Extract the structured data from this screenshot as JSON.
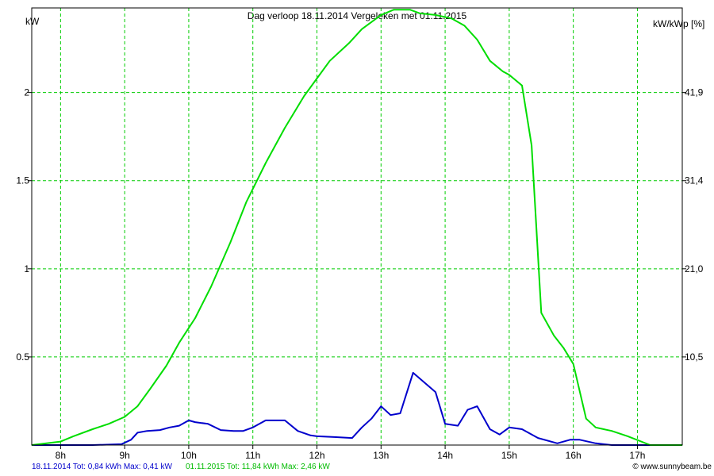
{
  "chart_data": {
    "type": "line",
    "title": "Dag  verloop 18.11.2014   Vergeleken met 01.11.2015",
    "ylabel_left": "kW",
    "ylabel_right": "kW/kWp [%]",
    "x_ticks": [
      "8h",
      "9h",
      "10h",
      "11h",
      "12h",
      "13h",
      "14h",
      "15h",
      "16h",
      "17h"
    ],
    "xlim": [
      7.55,
      17.7
    ],
    "ylim": [
      0,
      2.48
    ],
    "y_ticks_left": [
      "0.5",
      "1",
      "1.5",
      "2"
    ],
    "y_ticks_right": [
      "10,5",
      "21,0",
      "31,4",
      "41,9"
    ],
    "y_tick_values": [
      0.5,
      1,
      1.5,
      2
    ],
    "grid": true,
    "series": [
      {
        "name": "18.11.2014",
        "color": "#0000cc",
        "x": [
          7.55,
          8.5,
          8.95,
          9.1,
          9.2,
          9.35,
          9.55,
          9.7,
          9.85,
          10.0,
          10.1,
          10.3,
          10.5,
          10.7,
          10.85,
          11.0,
          11.2,
          11.5,
          11.7,
          11.9,
          12.0,
          12.3,
          12.55,
          12.7,
          12.85,
          13.0,
          13.15,
          13.3,
          13.5,
          13.85,
          14.0,
          14.2,
          14.35,
          14.5,
          14.7,
          14.85,
          15.0,
          15.2,
          15.45,
          15.75,
          15.95,
          16.1,
          16.35,
          16.6,
          17.7
        ],
        "values": [
          0,
          0,
          0.005,
          0.03,
          0.07,
          0.08,
          0.085,
          0.1,
          0.11,
          0.14,
          0.13,
          0.12,
          0.085,
          0.08,
          0.08,
          0.1,
          0.14,
          0.14,
          0.08,
          0.055,
          0.05,
          0.045,
          0.04,
          0.1,
          0.15,
          0.22,
          0.17,
          0.18,
          0.41,
          0.3,
          0.12,
          0.11,
          0.2,
          0.22,
          0.09,
          0.06,
          0.1,
          0.09,
          0.04,
          0.01,
          0.03,
          0.03,
          0.01,
          0,
          0
        ]
      },
      {
        "name": "01.11.2015",
        "color": "#00dd00",
        "x": [
          7.55,
          8.0,
          8.2,
          8.5,
          8.75,
          9.0,
          9.2,
          9.4,
          9.65,
          9.85,
          10.1,
          10.35,
          10.65,
          10.9,
          11.2,
          11.5,
          11.8,
          12.0,
          12.2,
          12.5,
          12.7,
          13.0,
          13.2,
          13.45,
          13.6,
          13.85,
          14.1,
          14.3,
          14.5,
          14.7,
          14.9,
          15.0,
          15.2,
          15.35,
          15.5,
          15.7,
          15.85,
          16.0,
          16.2,
          16.35,
          16.6,
          16.85,
          17.2,
          17.7
        ],
        "values": [
          0,
          0.02,
          0.05,
          0.09,
          0.12,
          0.16,
          0.22,
          0.32,
          0.45,
          0.58,
          0.72,
          0.9,
          1.15,
          1.38,
          1.6,
          1.8,
          1.98,
          2.08,
          2.18,
          2.28,
          2.36,
          2.44,
          2.47,
          2.47,
          2.45,
          2.44,
          2.42,
          2.38,
          2.3,
          2.18,
          2.12,
          2.1,
          2.04,
          1.7,
          0.75,
          0.62,
          0.55,
          0.46,
          0.15,
          0.1,
          0.08,
          0.05,
          0,
          0
        ]
      }
    ]
  },
  "footer": {
    "series1_text": "18.11.2014 Tot: 0,84 kWh Max: 0,41 kW",
    "series2_text": "01.11.2015 Tot: 11,84 kWh Max: 2,46 kW",
    "credit": "© www.sunnybeam.be"
  },
  "colors": {
    "grid": "#00cc00",
    "frame": "#000000"
  }
}
